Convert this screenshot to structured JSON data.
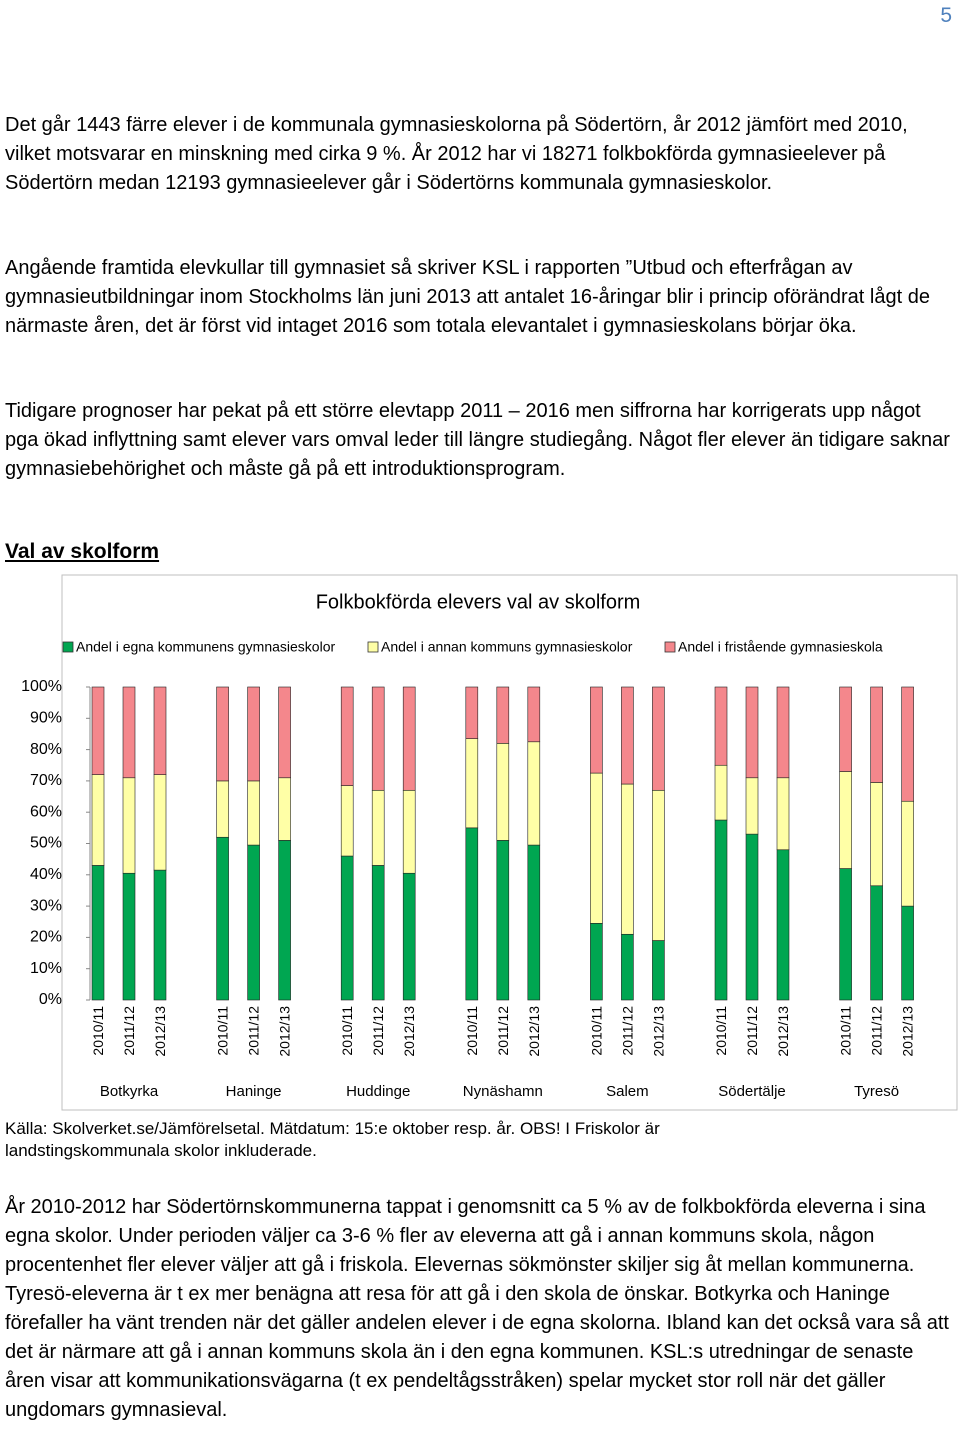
{
  "page_number": "5",
  "paragraphs": [
    "Det går 1443 färre elever i de kommunala gymnasieskolorna på Södertörn, år 2012 jämfört med 2010, vilket motsvarar en minskning med cirka 9 %. År 2012 har vi 18271 folkbokförda gymnasieelever på Södertörn medan 12193 gymnasieelever går i Södertörns kommunala gymnasieskolor.",
    "Angående framtida elevkullar till gymnasiet så skriver KSL i rapporten ”Utbud och efterfrågan av gymnasieutbildningar inom Stockholms län juni 2013 att antalet 16-åringar blir i princip oförändrat lågt de närmaste åren, det är först vid intaget 2016 som totala elevantalet i gymnasieskolans börjar öka.",
    "Tidigare prognoser har pekat på ett större elevtapp 2011 – 2016 men siffrorna har korrigerats upp något pga ökad inflyttning samt elever vars omval leder till längre studiegång. Något fler elever än tidigare saknar gymnasiebehörighet och måste gå på ett introduktionsprogram."
  ],
  "heading": "Val av skolform",
  "caption": "Källa: Skolverket.se/Jämförelsetal. Mätdatum: 15:e oktober resp. år. OBS! I Friskolor är landstingskommunala skolor inkluderade.",
  "final_paragraph": "År 2010-2012 har Södertörnskommunerna tappat i genomsnitt ca 5 % av de folkbokförda eleverna i sina egna skolor.  Under perioden väljer ca 3-6 % fler av eleverna att gå i annan kommuns skola, någon procentenhet fler elever väljer att gå i friskola. Elevernas sökmönster skiljer sig åt mellan kommunerna. Tyresö-eleverna är t ex mer benägna att resa för att gå i den skola de önskar. Botkyrka och Haninge förefaller ha vänt trenden när det gäller andelen elever i de egna skolorna. Ibland kan det också vara så att det är närmare att gå i annan kommuns skola än i den egna kommunen. KSL:s utredningar de senaste åren visar att kommunikationsvägarna (t ex pendeltågsstråken) spelar mycket stor roll när det gäller ungdomars gymnasieval.",
  "chart_data": {
    "type": "stacked_bar",
    "title": "Folkbokförda elevers val av skolform",
    "categories": [
      "2010/11",
      "2011/12",
      "2012/13",
      "2010/11",
      "2011/12",
      "2012/13",
      "2010/11",
      "2011/12",
      "2012/13",
      "2010/11",
      "2011/12",
      "2012/13",
      "2010/11",
      "2011/12",
      "2012/13",
      "2010/11",
      "2011/12",
      "2012/13",
      "2010/11",
      "2011/12",
      "2012/13"
    ],
    "groups": [
      "Botkyrka",
      "Haninge",
      "Huddinge",
      "Nynäshamn",
      "Salem",
      "Södertälje",
      "Tyresö"
    ],
    "series": [
      {
        "name": "Andel i egna kommunens gymnasieskolor",
        "color": "#00a651",
        "values": [
          43,
          40.5,
          41.5,
          52,
          49.5,
          51,
          46,
          43,
          40.5,
          55,
          51,
          49.5,
          24.5,
          21,
          19,
          57.5,
          53,
          48,
          42,
          36.5,
          30
        ]
      },
      {
        "name": "Andel i annan kommuns gymnasieskolor",
        "color": "#ffffa6",
        "values": [
          29,
          30.5,
          30.5,
          18,
          20.5,
          20,
          22.5,
          24,
          26.5,
          28.5,
          31,
          33,
          48,
          48,
          48,
          17.5,
          18,
          23,
          31,
          33,
          33.5
        ]
      },
      {
        "name": "Andel i fristående gymnasieskola",
        "color": "#f4878c",
        "values": [
          28,
          29,
          28,
          30,
          30,
          29,
          31.5,
          33,
          33,
          16.5,
          18,
          17.5,
          27.5,
          31,
          33,
          25,
          29,
          29,
          27,
          30.5,
          36.5
        ]
      }
    ],
    "ylim": [
      0,
      100
    ],
    "yticks": [
      {
        "value": 0,
        "label": "0%"
      },
      {
        "value": 10,
        "label": "10%"
      },
      {
        "value": 20,
        "label": "20%"
      },
      {
        "value": 30,
        "label": "30%"
      },
      {
        "value": 40,
        "label": "40%"
      },
      {
        "value": 50,
        "label": "50%"
      },
      {
        "value": 60,
        "label": "60%"
      },
      {
        "value": 70,
        "label": "70%"
      },
      {
        "value": 80,
        "label": "80%"
      },
      {
        "value": 90,
        "label": "90%"
      },
      {
        "value": 100,
        "label": "100%"
      }
    ],
    "legend": "top",
    "grid": false
  }
}
